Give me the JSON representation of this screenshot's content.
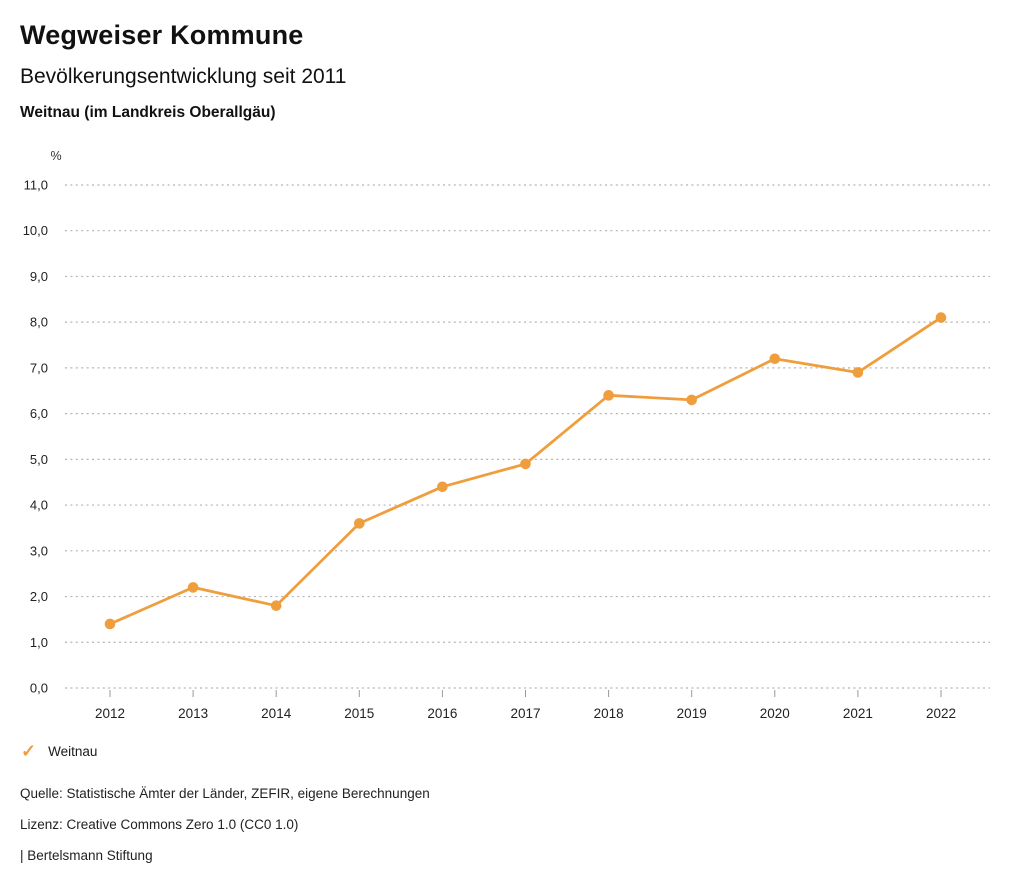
{
  "header": {
    "title": "Wegweiser Kommune",
    "subtitle": "Bevölkerungsentwicklung seit 2011",
    "region": "Weitnau (im Landkreis Oberallgäu)"
  },
  "chart_data": {
    "type": "line",
    "title": "Bevölkerungsentwicklung seit 2011",
    "subtitle": "Weitnau (im Landkreis Oberallgäu)",
    "ylabel": "%",
    "categories": [
      "2012",
      "2013",
      "2014",
      "2015",
      "2016",
      "2017",
      "2018",
      "2019",
      "2020",
      "2021",
      "2022"
    ],
    "series": [
      {
        "name": "Weitnau",
        "color": "#EF9E3E",
        "values": [
          1.4,
          2.2,
          1.8,
          3.6,
          4.4,
          4.9,
          6.4,
          6.3,
          7.2,
          6.9,
          8.1
        ]
      }
    ],
    "ylim": [
      0,
      11
    ],
    "ytick_step": 1,
    "decimal_separator": ",",
    "grid": "horizontal-dotted",
    "legend_position": "bottom-left"
  },
  "legend": {
    "items": [
      {
        "label": "Weitnau",
        "marker": "check",
        "color": "#EF9E3E"
      }
    ]
  },
  "footer": {
    "source": "Quelle: Statistische Ämter der Länder, ZEFIR, eigene Berechnungen",
    "license": "Lizenz: Creative Commons Zero 1.0 (CC0 1.0)",
    "attribution": "| Bertelsmann Stiftung"
  },
  "colors": {
    "accent": "#EF9E3E",
    "grid": "#B3B3B3",
    "tick": "#999999",
    "axis_text": "#333333",
    "label_text": "#222222"
  }
}
